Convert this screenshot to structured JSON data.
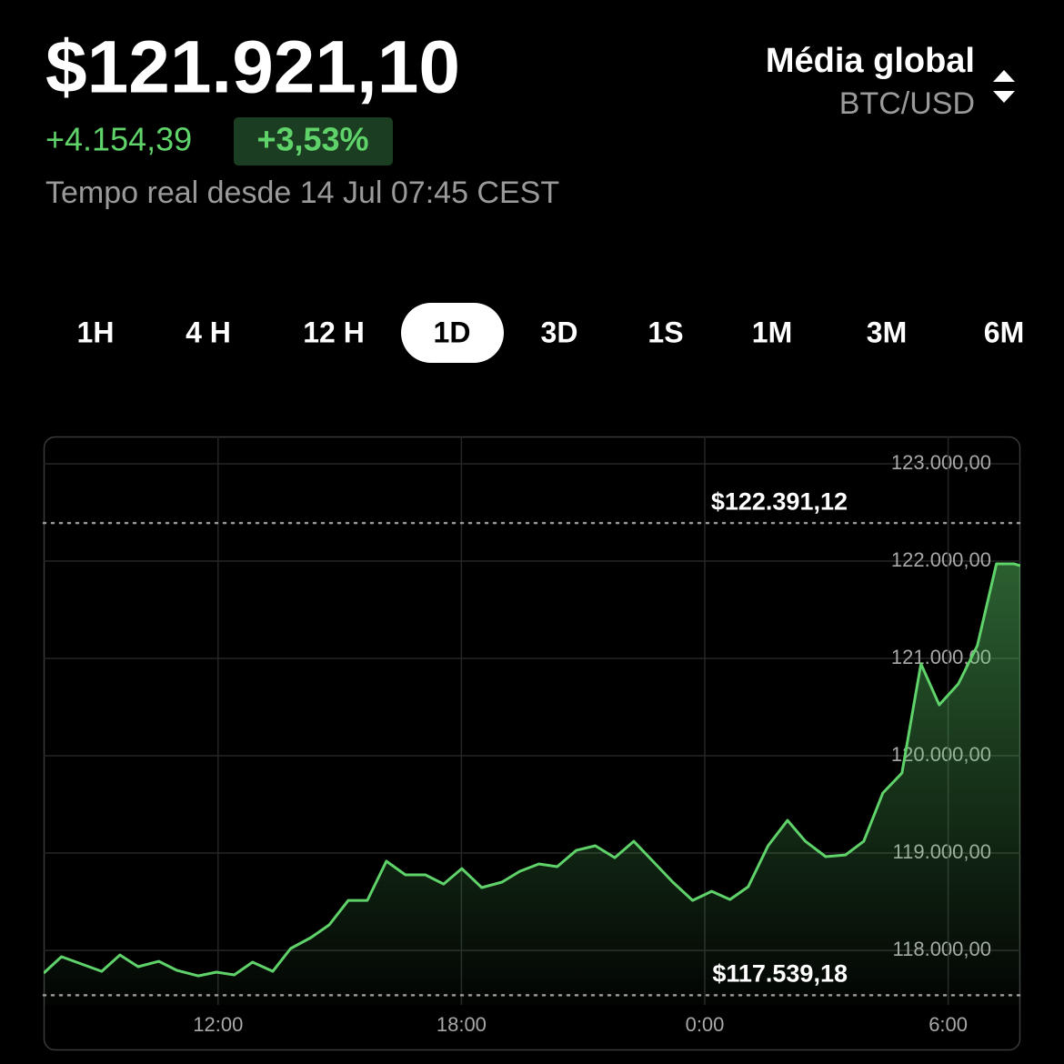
{
  "header": {
    "price": "$121.921,10",
    "change": "+4.154,39",
    "change_pct": "+3,53%",
    "subtitle": "Tempo real desde 14 Jul 07:45 CEST",
    "source": "Média global",
    "pair": "BTC/USD"
  },
  "tabs": {
    "items": [
      "1H",
      "4 H",
      "12 H",
      "1D",
      "3D",
      "1S",
      "1M",
      "3M",
      "6M"
    ],
    "selected": 3
  },
  "chart_data": {
    "type": "line",
    "color": "#5fd36a",
    "x": [
      7.7,
      8.14,
      8.64,
      9.13,
      9.58,
      10.03,
      10.54,
      10.99,
      11.51,
      11.96,
      12.4,
      12.85,
      13.35,
      13.79,
      14.29,
      14.74,
      15.21,
      15.68,
      16.15,
      16.62,
      17.11,
      17.56,
      18.01,
      18.5,
      19.0,
      19.44,
      19.91,
      20.36,
      20.83,
      21.3,
      21.78,
      22.25,
      22.72,
      23.21,
      23.7,
      24.17,
      24.62,
      25.07,
      25.56,
      26.04,
      26.48,
      26.98,
      27.47,
      27.92,
      28.39,
      28.86,
      29.33,
      29.78,
      30.25,
      30.72,
      31.19,
      31.62,
      31.78
    ],
    "values": [
      117766,
      117935,
      117860,
      117785,
      117953,
      117832,
      117888,
      117794,
      117738,
      117776,
      117748,
      117879,
      117785,
      118019,
      118131,
      118262,
      118514,
      118514,
      118916,
      118776,
      118776,
      118682,
      118841,
      118645,
      118701,
      118813,
      118888,
      118860,
      119028,
      119075,
      118953,
      119121,
      118916,
      118701,
      118514,
      118607,
      118523,
      118654,
      119075,
      119336,
      119121,
      118963,
      118981,
      119121,
      119617,
      119822,
      120944,
      120523,
      120738,
      121131,
      121972,
      121972,
      121953
    ],
    "xlim": [
      7.7,
      31.78
    ],
    "ylim": [
      117440,
      123280
    ],
    "xticks": [
      {
        "value": 12,
        "label": "12:00"
      },
      {
        "value": 18,
        "label": "18:00"
      },
      {
        "value": 24,
        "label": "0:00"
      },
      {
        "value": 30,
        "label": "6:00"
      }
    ],
    "yticks": [
      {
        "value": 118000,
        "label": "118.000,00"
      },
      {
        "value": 119000,
        "label": "119.000,00"
      },
      {
        "value": 120000,
        "label": "120.000,00"
      },
      {
        "value": 121000,
        "label": "121.000,00"
      },
      {
        "value": 122000,
        "label": "122.000,00"
      },
      {
        "value": 123000,
        "label": "123.000,00"
      }
    ],
    "grid": true,
    "annotations": [
      {
        "label": "$122.391,12",
        "value": 122391.12
      },
      {
        "label": "$117.539,18",
        "value": 117539.18
      }
    ]
  }
}
